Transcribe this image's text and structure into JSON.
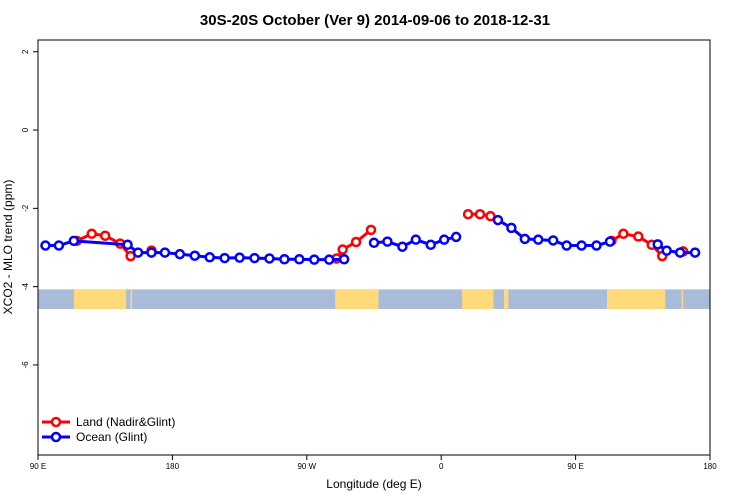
{
  "chart_data": {
    "type": "line",
    "title": "30S-20S October (Ver 9)   2014-09-06 to 2018-12-31",
    "xlabel": "Longitude (deg E)",
    "ylabel": "XCO2 - MLO trend (ppm)",
    "x_axis": {
      "range": [
        90,
        540
      ],
      "ticks": [
        {
          "value": 90,
          "label": "90 E"
        },
        {
          "value": 180,
          "label": "180"
        },
        {
          "value": 270,
          "label": "90 W"
        },
        {
          "value": 360,
          "label": "0"
        },
        {
          "value": 450,
          "label": "90 E"
        },
        {
          "value": 540,
          "label": "180"
        }
      ]
    },
    "y_axis": {
      "range": [
        -8.3,
        2.3
      ],
      "ticks": [
        {
          "value": 2,
          "label": "2"
        },
        {
          "value": 0,
          "label": "0"
        },
        {
          "value": -2,
          "label": "-2"
        },
        {
          "value": -4,
          "label": "-4"
        },
        {
          "value": -6,
          "label": "-6"
        }
      ]
    },
    "grid": false,
    "legend_position": "bottom-left",
    "series": [
      {
        "name": "Land (Nadir&Glint)",
        "color": "#ff0000",
        "segments": [
          [
            [
              116,
              -2.83
            ],
            [
              126,
              -2.65
            ],
            [
              135,
              -2.7
            ],
            [
              145,
              -2.9
            ],
            [
              152,
              -3.22
            ]
          ],
          [
            [
              166,
              -3.08
            ]
          ],
          [
            [
              290,
              -3.28
            ],
            [
              294,
              -3.05
            ],
            [
              303,
              -2.86
            ],
            [
              313,
              -2.55
            ]
          ],
          [
            [
              378,
              -2.15
            ],
            [
              386,
              -2.15
            ],
            [
              393,
              -2.2
            ]
          ],
          [
            [
              474,
              -2.83
            ],
            [
              482,
              -2.65
            ],
            [
              492,
              -2.72
            ],
            [
              501,
              -2.93
            ],
            [
              508,
              -3.22
            ]
          ],
          [
            [
              522,
              -3.1
            ]
          ]
        ]
      },
      {
        "name": "Ocean (Glint)",
        "color": "#0000ff",
        "segments": [
          [
            [
              95,
              -2.95
            ],
            [
              104,
              -2.95
            ],
            [
              114,
              -2.83
            ],
            [
              150,
              -2.93
            ],
            [
              157,
              -3.13
            ],
            [
              166,
              -3.13
            ],
            [
              175,
              -3.13
            ],
            [
              185,
              -3.17
            ],
            [
              195,
              -3.21
            ],
            [
              205,
              -3.25
            ],
            [
              215,
              -3.27
            ],
            [
              225,
              -3.26
            ],
            [
              235,
              -3.27
            ],
            [
              245,
              -3.28
            ],
            [
              255,
              -3.3
            ],
            [
              265,
              -3.3
            ],
            [
              275,
              -3.31
            ],
            [
              285,
              -3.31
            ],
            [
              295,
              -3.3
            ]
          ],
          [
            [
              315,
              -2.88
            ],
            [
              324,
              -2.85
            ],
            [
              334,
              -2.98
            ],
            [
              343,
              -2.8
            ],
            [
              353,
              -2.93
            ],
            [
              362,
              -2.8
            ],
            [
              370,
              -2.73
            ]
          ],
          [
            [
              398,
              -2.3
            ],
            [
              407,
              -2.5
            ],
            [
              416,
              -2.78
            ],
            [
              425,
              -2.8
            ],
            [
              435,
              -2.82
            ],
            [
              444,
              -2.95
            ],
            [
              454,
              -2.95
            ],
            [
              464,
              -2.95
            ],
            [
              473,
              -2.85
            ]
          ],
          [
            [
              505,
              -2.92
            ],
            [
              511,
              -3.08
            ],
            [
              520,
              -3.13
            ],
            [
              530,
              -3.13
            ]
          ]
        ]
      }
    ],
    "land_mask_band": {
      "y_range": [
        -4.57,
        -4.07
      ],
      "ocean_color": "#a8bcd9",
      "land_color": "#ffd97a",
      "land_x_ranges": [
        [
          114,
          149
        ],
        [
          152,
          153
        ],
        [
          289,
          318
        ],
        [
          374,
          395
        ],
        [
          402,
          405
        ],
        [
          471,
          510
        ],
        [
          521,
          522
        ]
      ]
    }
  }
}
